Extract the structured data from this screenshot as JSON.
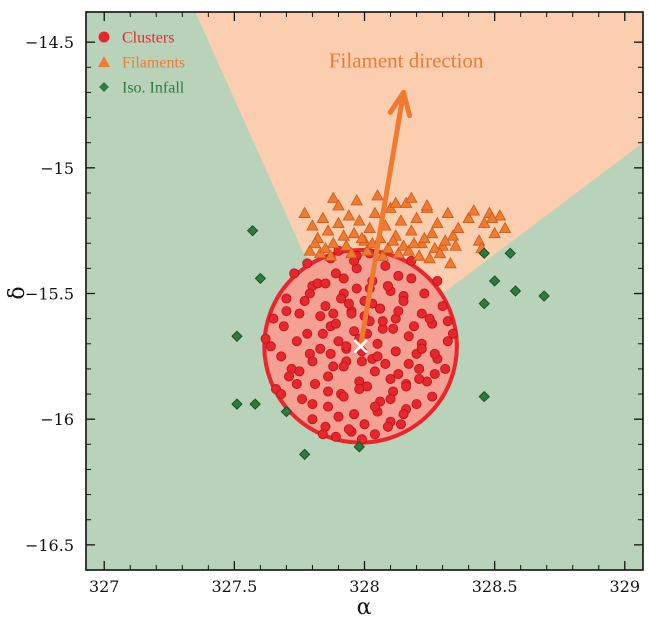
{
  "chart_data": {
    "type": "scatter",
    "title": "",
    "xlabel": "α",
    "ylabel": "δ",
    "xlim": [
      326.93,
      329.07
    ],
    "ylim": [
      -16.6,
      -14.38
    ],
    "y_inverted": true,
    "grid": false,
    "legend_position": "top-left",
    "x_ticks": [
      327,
      327.5,
      328,
      328.5,
      329
    ],
    "x_tick_labels": [
      "327",
      "327.5",
      "328",
      "328.5",
      "329"
    ],
    "y_ticks": [
      -14.5,
      -15,
      -15.5,
      -16,
      -16.5
    ],
    "y_tick_labels": [
      "−14.5",
      "−15",
      "−15.5",
      "−16",
      "−16.5"
    ],
    "colors": {
      "clusters": "#e8262b",
      "filaments": "#f07a30",
      "infall": "#2f7a3e",
      "green_region": "#b9d3bb",
      "orange_region": "#fbceb0",
      "circle_fill": "#f4a092",
      "circle_edge": "#e8262b",
      "arrow": "#f07a30",
      "center_marker": "#ffffff"
    },
    "filament_cone": [
      [
        326.93,
        -14.38
      ],
      [
        327.35,
        -14.38
      ],
      [
        327.77,
        -15.35
      ],
      [
        328.3,
        -15.5
      ],
      [
        329.07,
        -14.9
      ],
      [
        329.07,
        -14.38
      ]
    ],
    "circle": {
      "center": [
        327.985,
        -15.71
      ],
      "radius_deg": 0.37
    },
    "center_point": [
      327.985,
      -15.71
    ],
    "arrow": {
      "from": [
        327.985,
        -15.71
      ],
      "to": [
        328.15,
        -14.7
      ]
    },
    "annotation": "Filament direction",
    "annotation_position": [
      328.16,
      -14.6
    ],
    "series": [
      {
        "name": "Clusters",
        "marker": "circle",
        "x": [
          327.62,
          327.65,
          327.68,
          327.7,
          327.72,
          327.75,
          327.78,
          327.8,
          327.83,
          327.85,
          327.87,
          327.89,
          327.9,
          327.92,
          327.93,
          327.95,
          327.96,
          327.97,
          327.99,
          328.0,
          328.02,
          328.03,
          328.05,
          328.06,
          328.08,
          328.1,
          328.11,
          328.13,
          328.15,
          328.17,
          328.18,
          328.2,
          328.22,
          328.24,
          328.26,
          328.28,
          328.3,
          328.32,
          328.34,
          327.66,
          327.71,
          327.76,
          327.81,
          327.86,
          327.91,
          327.96,
          328.01,
          328.06,
          328.11,
          328.16,
          328.21,
          328.26,
          328.31,
          327.64,
          327.69,
          327.74,
          327.79,
          327.84,
          327.88,
          327.93,
          327.98,
          328.03,
          328.07,
          328.12,
          328.17,
          328.22,
          328.27,
          328.32,
          327.73,
          327.78,
          327.82,
          327.87,
          327.92,
          327.97,
          328.02,
          328.08,
          328.13,
          328.18,
          328.23,
          328.28,
          327.8,
          327.85,
          327.9,
          327.95,
          328.0,
          328.05,
          328.1,
          328.15,
          328.2,
          327.84,
          327.89,
          327.94,
          327.99,
          328.04,
          328.09,
          328.14,
          327.88,
          327.94,
          328.0,
          328.06,
          328.12,
          327.75,
          327.8,
          327.86,
          327.92,
          327.98,
          328.04,
          328.1,
          328.16,
          328.22,
          327.7,
          327.77,
          327.83,
          327.89,
          327.95,
          328.01,
          328.07,
          328.13,
          328.19,
          328.25,
          327.68,
          327.74,
          327.8,
          327.86,
          327.92,
          327.98,
          328.04,
          328.1,
          328.16,
          328.21,
          328.27,
          327.79,
          327.85,
          327.91,
          327.97,
          328.03,
          328.09,
          328.15,
          327.87,
          327.93,
          327.99,
          328.05,
          327.9,
          327.96,
          328.02
        ],
        "y": [
          -15.68,
          -15.6,
          -15.75,
          -15.52,
          -15.8,
          -15.58,
          -15.66,
          -15.47,
          -15.72,
          -15.55,
          -15.63,
          -15.42,
          -15.69,
          -15.5,
          -15.77,
          -15.57,
          -15.65,
          -15.4,
          -15.73,
          -15.53,
          -15.61,
          -15.45,
          -15.7,
          -15.56,
          -15.78,
          -15.49,
          -15.64,
          -15.82,
          -15.51,
          -15.67,
          -15.44,
          -15.74,
          -15.58,
          -15.85,
          -15.62,
          -15.76,
          -15.55,
          -15.69,
          -15.66,
          -15.88,
          -15.83,
          -15.92,
          -15.86,
          -15.95,
          -15.9,
          -15.98,
          -15.87,
          -15.93,
          -15.89,
          -15.96,
          -15.84,
          -15.91,
          -15.8,
          -15.71,
          -15.63,
          -15.69,
          -15.74,
          -15.66,
          -15.79,
          -15.72,
          -15.68,
          -15.76,
          -15.64,
          -15.73,
          -15.78,
          -15.7,
          -15.82,
          -15.61,
          -15.42,
          -15.38,
          -15.46,
          -15.36,
          -15.44,
          -15.35,
          -15.48,
          -15.39,
          -15.43,
          -15.37,
          -15.5,
          -15.45,
          -16.0,
          -16.03,
          -15.99,
          -16.05,
          -16.02,
          -15.97,
          -16.01,
          -15.98,
          -15.94,
          -16.06,
          -16.07,
          -16.04,
          -16.08,
          -16.06,
          -16.03,
          -16.02,
          -15.58,
          -15.54,
          -15.59,
          -15.56,
          -15.6,
          -15.81,
          -15.77,
          -15.83,
          -15.79,
          -15.85,
          -15.81,
          -15.84,
          -15.86,
          -15.72,
          -15.57,
          -15.53,
          -15.59,
          -15.62,
          -15.58,
          -15.66,
          -15.61,
          -15.57,
          -15.63,
          -15.6,
          -15.9,
          -15.86,
          -15.94,
          -15.89,
          -15.91,
          -15.88,
          -15.95,
          -15.92,
          -15.87,
          -15.8,
          -15.74,
          -15.5,
          -15.46,
          -15.52,
          -15.48,
          -15.54,
          -15.47,
          -15.53,
          -15.74,
          -15.71,
          -15.77,
          -15.75,
          -15.33,
          -15.37,
          -15.34
        ]
      },
      {
        "name": "Filaments",
        "marker": "triangle",
        "x": [
          327.77,
          327.8,
          327.82,
          327.84,
          327.86,
          327.88,
          327.9,
          327.92,
          327.94,
          327.96,
          327.98,
          328.0,
          328.02,
          328.04,
          328.06,
          328.08,
          328.1,
          328.12,
          328.14,
          328.16,
          328.18,
          328.2,
          328.22,
          328.24,
          328.26,
          328.28,
          328.3,
          328.32,
          328.34,
          328.36,
          328.4,
          328.42,
          328.44,
          328.46,
          328.48,
          328.5,
          328.52,
          328.54,
          327.79,
          327.81,
          327.83,
          327.85,
          327.87,
          327.93,
          327.95,
          327.99,
          328.01,
          328.03,
          328.07,
          328.09,
          328.11,
          328.13,
          328.15,
          328.17,
          328.19,
          328.21,
          328.23,
          328.25,
          328.27,
          328.29,
          328.31,
          328.33,
          328.35,
          328.45,
          328.49,
          327.88,
          327.9,
          327.97,
          328.05,
          328.12,
          328.18,
          328.24
        ],
        "y": [
          -15.18,
          -15.23,
          -15.28,
          -15.2,
          -15.25,
          -15.3,
          -15.22,
          -15.27,
          -15.19,
          -15.26,
          -15.21,
          -15.29,
          -15.24,
          -15.18,
          -15.28,
          -15.23,
          -15.16,
          -15.27,
          -15.21,
          -15.14,
          -15.25,
          -15.2,
          -15.3,
          -15.16,
          -15.26,
          -15.22,
          -15.31,
          -15.18,
          -15.27,
          -15.24,
          -15.2,
          -15.17,
          -15.29,
          -15.22,
          -15.18,
          -15.26,
          -15.19,
          -15.24,
          -15.33,
          -15.3,
          -15.34,
          -15.32,
          -15.35,
          -15.31,
          -15.34,
          -15.28,
          -15.33,
          -15.3,
          -15.35,
          -15.32,
          -15.29,
          -15.34,
          -15.31,
          -15.33,
          -15.3,
          -15.35,
          -15.28,
          -15.36,
          -15.32,
          -15.34,
          -15.29,
          -15.38,
          -15.31,
          -15.32,
          -15.2,
          -15.12,
          -15.15,
          -15.13,
          -15.11,
          -15.14,
          -15.12,
          -15.15
        ]
      },
      {
        "name": "Iso. Infall",
        "marker": "diamond",
        "x": [
          327.57,
          327.6,
          327.51,
          327.51,
          327.58,
          327.7,
          327.77,
          327.98,
          328.46,
          328.46,
          328.5,
          328.56,
          328.58,
          328.69,
          328.46
        ],
        "y": [
          -15.25,
          -15.44,
          -15.67,
          -15.94,
          -15.94,
          -15.97,
          -16.14,
          -16.11,
          -15.34,
          -15.54,
          -15.45,
          -15.34,
          -15.49,
          -15.51,
          -15.91
        ]
      }
    ]
  }
}
